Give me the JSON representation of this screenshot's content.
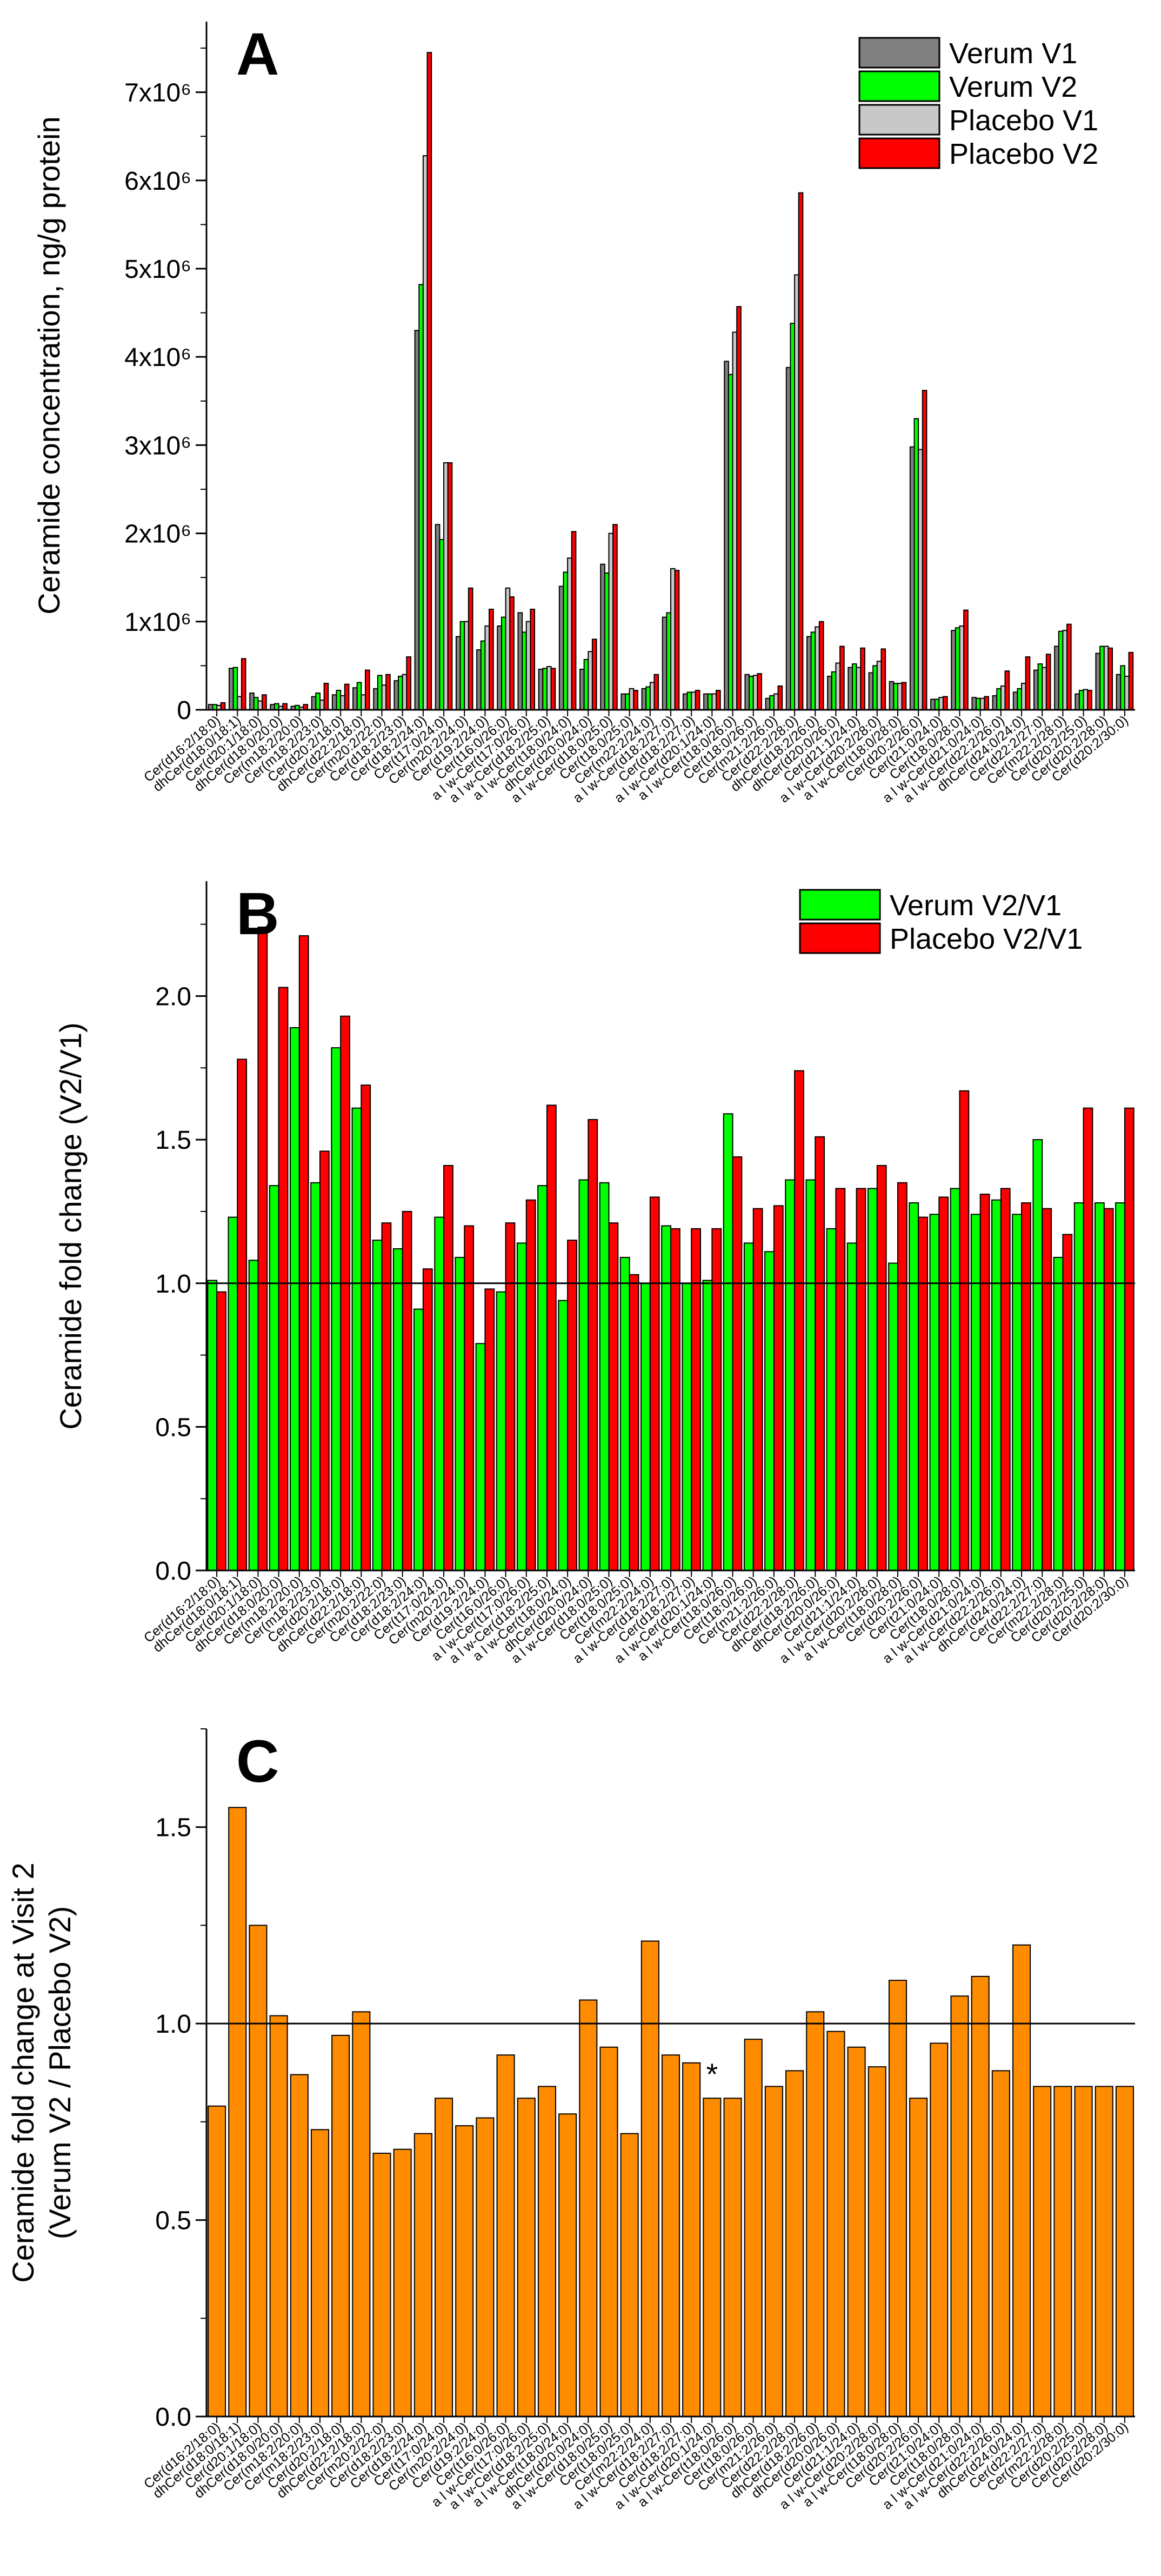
{
  "colors": {
    "verum_v1": "#808080",
    "verum_v2": "#00ff00",
    "placebo_v1": "#c8c8c8",
    "placebo_v2": "#ff0000",
    "ratio": "#ff8c00",
    "axis": "#000000"
  },
  "chart_data": [
    {
      "type": "bar",
      "panel_label": "A",
      "ylabel": "Ceramide concentration, ng/g protein",
      "ylim": [
        0,
        7800000
      ],
      "yticks": [
        0,
        1000000,
        2000000,
        3000000,
        4000000,
        5000000,
        6000000,
        7000000
      ],
      "ytick_labels": [
        "0",
        "1x10⁶",
        "2x10⁶",
        "3x10⁶",
        "4x10⁶",
        "5x10⁶",
        "6x10⁶",
        "7x10⁶"
      ],
      "legend_position": "top-right",
      "categories": [
        "Cer(d16:2/18:0)",
        "dhCer(d18:0/18:1)",
        "Cer(d20:1/18:0)",
        "dhCer(d18:0/20:0)",
        "Cer(m18:2/20:0)",
        "Cer(m18:2/23:0)",
        "Cer(d20:2/18:0)",
        "dhCer(d22:2/18:0)",
        "Cer(m20:2/22:0)",
        "Cer(d18:2/23:0)",
        "Cer(d18:2/24:0)",
        "Cer(t17:0/24:0)",
        "Cer(m20:2/24:0)",
        "Cer(d19:2/24:0)",
        "Cer(t16:0/26:0)",
        "a l w-Cer(t17:0/26:0)",
        "a l w-Cer(d18:2/25:0)",
        "a l w-Cer(t18:0/24:0)",
        "dhCer(d20:0/24:0)",
        "a l w-Cer(d18:0/25:0)",
        "Cer(t18:0/25:0)",
        "Cer(m22:2/24:0)",
        "a l w-Cer(d18:2/27:0)",
        "Cer(d18:2/27:0)",
        "a l w-Cer(d20:1/24:0)",
        "a l w-Cer(t18:0/26:0)",
        "Cer(t18:0/26:0)",
        "Cer(m21:2/26:0)",
        "Cer(d22:2/28:0)",
        "dhCer(d18:2/26:0)",
        "dhCer(d20:0/26:0)",
        "Cer(d21:1/24:0)",
        "a l w-Cer(d20:2/28:0)",
        "a l w-Cer(t18:0/28:0)",
        "Cer(d20:2/26:0)",
        "Cer(t21:0/24:0)",
        "Cer(t18:0/28:0)",
        "a l w-Cer(d21:0/24:0)",
        "a l w-Cer(d22:2/26:0)",
        "dhCer(d24:0/24:0)",
        "Cer(d22:2/27:0)",
        "Cer(m22:2/28:0)",
        "Cer(d20:2/25:0)",
        "Cer(d20:2/28:0)",
        "Cer(d20:2/30:0)"
      ],
      "series": [
        {
          "name": "Verum V1",
          "values": [
            60000,
            470000,
            190000,
            60000,
            40000,
            150000,
            170000,
            250000,
            240000,
            330000,
            4300000,
            2100000,
            830000,
            680000,
            950000,
            1100000,
            460000,
            1400000,
            460000,
            1650000,
            180000,
            240000,
            1050000,
            180000,
            180000,
            3950000,
            400000,
            130000,
            3880000,
            830000,
            380000,
            480000,
            420000,
            320000,
            2980000,
            120000,
            900000,
            140000,
            160000,
            200000,
            450000,
            720000,
            180000,
            640000,
            400000
          ]
        },
        {
          "name": "Verum V2",
          "values": [
            60000,
            480000,
            140000,
            70000,
            50000,
            190000,
            220000,
            310000,
            390000,
            380000,
            4820000,
            1930000,
            1000000,
            780000,
            1050000,
            880000,
            470000,
            1560000,
            570000,
            1550000,
            180000,
            260000,
            1100000,
            200000,
            180000,
            3800000,
            380000,
            160000,
            4380000,
            880000,
            430000,
            520000,
            500000,
            300000,
            3300000,
            120000,
            930000,
            130000,
            240000,
            240000,
            520000,
            890000,
            220000,
            720000,
            500000
          ]
        },
        {
          "name": "Placebo V1",
          "values": [
            50000,
            150000,
            100000,
            40000,
            30000,
            110000,
            160000,
            170000,
            280000,
            400000,
            6280000,
            2800000,
            1000000,
            950000,
            1380000,
            1000000,
            490000,
            1720000,
            660000,
            2000000,
            240000,
            310000,
            1600000,
            200000,
            180000,
            4280000,
            390000,
            180000,
            4930000,
            940000,
            530000,
            480000,
            550000,
            300000,
            2950000,
            140000,
            950000,
            130000,
            270000,
            300000,
            480000,
            900000,
            230000,
            720000,
            380000
          ]
        },
        {
          "name": "Placebo V2",
          "values": [
            80000,
            580000,
            170000,
            70000,
            60000,
            300000,
            290000,
            450000,
            400000,
            600000,
            7450000,
            2800000,
            1380000,
            1140000,
            1280000,
            1140000,
            470000,
            2020000,
            800000,
            2100000,
            220000,
            400000,
            1580000,
            220000,
            220000,
            4570000,
            410000,
            270000,
            5860000,
            1000000,
            720000,
            700000,
            690000,
            310000,
            3620000,
            150000,
            1130000,
            150000,
            440000,
            600000,
            630000,
            970000,
            220000,
            700000,
            650000
          ]
        }
      ]
    },
    {
      "type": "bar",
      "panel_label": "B",
      "ylabel": "Ceramide fold change (V2/V1)",
      "ylim": [
        0,
        2.4
      ],
      "yticks": [
        0,
        0.5,
        1,
        1.5,
        2
      ],
      "ytick_labels": [
        "0.0",
        "0.5",
        "1.0",
        "1.5",
        "2.0"
      ],
      "reference_line": 1.0,
      "legend_position": "top-right",
      "categories": [
        "Cer(d16:2/18:0)",
        "dhCer(d18:0/18:1)",
        "Cer(d20:1/18:0)",
        "dhCer(d18:0/20:0)",
        "Cer(m18:2/20:0)",
        "Cer(m18:2/23:0)",
        "Cer(d20:2/18:0)",
        "dhCer(d22:2/18:0)",
        "Cer(m20:2/22:0)",
        "Cer(d18:2/23:0)",
        "Cer(d18:2/24:0)",
        "Cer(t17:0/24:0)",
        "Cer(m20:2/24:0)",
        "Cer(d19:2/24:0)",
        "Cer(t16:0/26:0)",
        "a l w-Cer(t17:0/26:0)",
        "a l w-Cer(d18:2/25:0)",
        "a l w-Cer(t18:0/24:0)",
        "dhCer(d20:0/24:0)",
        "a l w-Cer(d18:0/25:0)",
        "Cer(t18:0/25:0)",
        "Cer(m22:2/24:0)",
        "a l w-Cer(d18:2/27:0)",
        "Cer(d18:2/27:0)",
        "a l w-Cer(d20:1/24:0)",
        "a l w-Cer(t18:0/26:0)",
        "Cer(t18:0/26:0)",
        "Cer(m21:2/26:0)",
        "Cer(d22:2/28:0)",
        "dhCer(d18:2/26:0)",
        "dhCer(d20:0/26:0)",
        "Cer(d21:1/24:0)",
        "a l w-Cer(d20:2/28:0)",
        "a l w-Cer(t18:0/28:0)",
        "Cer(d20:2/26:0)",
        "Cer(t21:0/24:0)",
        "Cer(t18:0/28:0)",
        "a l w-Cer(d21:0/24:0)",
        "a l w-Cer(d22:2/26:0)",
        "dhCer(d24:0/24:0)",
        "Cer(d22:2/27:0)",
        "Cer(m22:2/28:0)",
        "Cer(d20:2/25:0)",
        "Cer(d20:2/28:0)",
        "Cer(d20:2/30:0)"
      ],
      "series": [
        {
          "name": "Verum V2/V1",
          "values": [
            1.01,
            1.23,
            1.08,
            1.34,
            1.89,
            1.35,
            1.82,
            1.61,
            1.15,
            1.12,
            0.91,
            1.23,
            1.09,
            0.79,
            0.97,
            1.14,
            1.34,
            0.94,
            1.36,
            1.35,
            1.09,
            1.0,
            1.2,
            1.0,
            1.01,
            1.59,
            1.14,
            1.11,
            1.36,
            1.36,
            1.19,
            1.14,
            1.33,
            1.07,
            1.28,
            1.24,
            1.33,
            1.24,
            1.29,
            1.24,
            1.5,
            1.09,
            1.28,
            1.28,
            1.28
          ]
        },
        {
          "name": "Placebo V2/V1",
          "values": [
            0.97,
            1.78,
            2.24,
            2.03,
            2.21,
            1.46,
            1.93,
            1.69,
            1.21,
            1.25,
            1.05,
            1.41,
            1.2,
            0.98,
            1.21,
            1.29,
            1.62,
            1.15,
            1.57,
            1.21,
            1.03,
            1.3,
            1.19,
            1.19,
            1.19,
            1.44,
            1.26,
            1.27,
            1.74,
            1.51,
            1.33,
            1.33,
            1.41,
            1.35,
            1.23,
            1.3,
            1.67,
            1.31,
            1.33,
            1.28,
            1.26,
            1.17,
            1.61,
            1.26,
            1.61
          ]
        }
      ]
    },
    {
      "type": "bar",
      "panel_label": "C",
      "ylabel_line1": "Ceramide fold change at Visit 2",
      "ylabel_line2": "(Verum V2 / Placebo V2)",
      "ylim": [
        0,
        1.75
      ],
      "yticks": [
        0,
        0.5,
        1,
        1.5
      ],
      "ytick_labels": [
        "0.0",
        "0.5",
        "1.0",
        "1.5"
      ],
      "reference_line": 1.0,
      "annotation": {
        "text": "*",
        "category_index": 24
      },
      "categories": [
        "Cer(d16:2/18:0)",
        "dhCer(d18:0/18:1)",
        "Cer(d20:1/18:0)",
        "dhCer(d18:0/20:0)",
        "Cer(m18:2/20:0)",
        "Cer(m18:2/23:0)",
        "Cer(d20:2/18:0)",
        "dhCer(d22:2/18:0)",
        "Cer(m20:2/22:0)",
        "Cer(d18:2/23:0)",
        "Cer(d18:2/24:0)",
        "Cer(t17:0/24:0)",
        "Cer(m20:2/24:0)",
        "Cer(d19:2/24:0)",
        "Cer(t16:0/26:0)",
        "a l w-Cer(t17:0/26:0)",
        "a l w-Cer(d18:2/25:0)",
        "a l w-Cer(t18:0/24:0)",
        "dhCer(d20:0/24:0)",
        "a l w-Cer(d18:0/25:0)",
        "Cer(t18:0/25:0)",
        "Cer(m22:2/24:0)",
        "a l w-Cer(d18:2/27:0)",
        "Cer(d18:2/27:0)",
        "a l w-Cer(d20:1/24:0)",
        "a l w-Cer(t18:0/26:0)",
        "Cer(t18:0/26:0)",
        "Cer(m21:2/26:0)",
        "Cer(d22:2/28:0)",
        "dhCer(d18:2/26:0)",
        "dhCer(d20:0/26:0)",
        "Cer(d21:1/24:0)",
        "a l w-Cer(d20:2/28:0)",
        "a l w-Cer(t18:0/28:0)",
        "Cer(d20:2/26:0)",
        "Cer(t21:0/24:0)",
        "Cer(t18:0/28:0)",
        "a l w-Cer(d21:0/24:0)",
        "a l w-Cer(d22:2/26:0)",
        "dhCer(d24:0/24:0)",
        "Cer(d22:2/27:0)",
        "Cer(m22:2/28:0)",
        "Cer(d20:2/25:0)",
        "Cer(d20:2/28:0)",
        "Cer(d20:2/30:0)"
      ],
      "series": [
        {
          "name": "Verum V2 / Placebo V2",
          "values": [
            0.79,
            1.55,
            1.25,
            1.02,
            0.87,
            0.73,
            0.97,
            1.03,
            0.67,
            0.68,
            0.72,
            0.81,
            0.74,
            0.76,
            0.92,
            0.81,
            0.84,
            0.77,
            1.06,
            0.94,
            0.72,
            1.21,
            0.92,
            0.9,
            0.81,
            0.81,
            0.96,
            0.84,
            0.88,
            1.03,
            0.98,
            0.94,
            0.89,
            1.11,
            0.81,
            0.95,
            1.07,
            1.12,
            0.88,
            1.2,
            0.84,
            0.84,
            0.84,
            0.84,
            0.84
          ]
        }
      ]
    }
  ]
}
